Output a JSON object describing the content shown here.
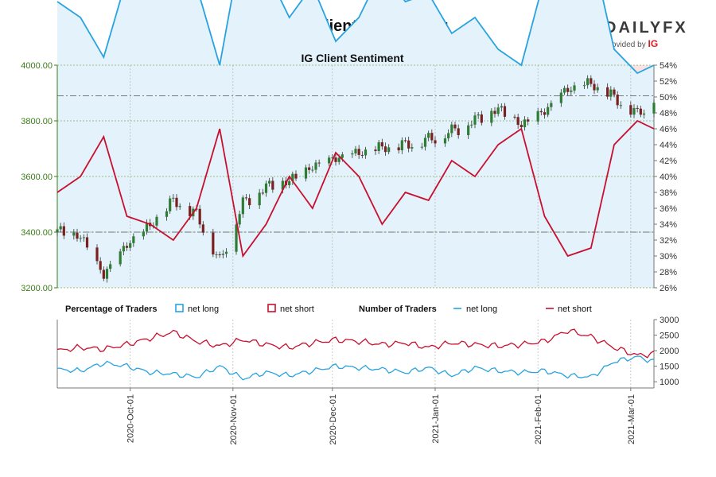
{
  "header": {
    "title": "US 500 Client Positioning",
    "logo_word": "DAILYFX",
    "logo_sub": "provided by",
    "logo_brand": "IG"
  },
  "colors": {
    "candle_up": "#2e7d32",
    "candle_down": "#7a2020",
    "net_long": "#29a3e0",
    "net_short": "#c8102e",
    "short_zone_bg": "#fbe3e4",
    "long_zone_bg": "#e3f2fb",
    "axis_green": "#3a7d1a"
  },
  "legend": {
    "pct_title": "Percentage of Traders",
    "pct_long": "net long",
    "pct_short": "net short",
    "num_title": "Number of Traders",
    "num_long": "net long",
    "num_short": "net short"
  },
  "chart_data": [
    {
      "type": "candlestick",
      "title": "IG Client Sentiment",
      "ylim": [
        3200,
        4000
      ],
      "yticks": [
        "3200.00",
        "3400.00",
        "3600.00",
        "3800.00",
        "4000.00"
      ],
      "right_ylim": [
        26,
        54
      ],
      "right_yticks": [
        "26%",
        "28%",
        "30%",
        "32%",
        "34%",
        "36%",
        "38%",
        "40%",
        "42%",
        "44%",
        "46%",
        "48%",
        "50%",
        "52%",
        "54%"
      ],
      "x_range": [
        "2020-09-09",
        "2021-03-08"
      ],
      "xticks": [
        {
          "date": "2020-10-01",
          "label": "2020-Oct-01"
        },
        {
          "date": "2020-11-01",
          "label": "2020-Nov-01"
        },
        {
          "date": "2020-12-01",
          "label": "2020-Dec-01"
        },
        {
          "date": "2021-01-01",
          "label": "2021-Jan-01"
        },
        {
          "date": "2021-02-01",
          "label": "2021-Feb-01"
        },
        {
          "date": "2021-03-01",
          "label": "2021-Mar-01"
        }
      ],
      "reference_lines": [
        3890,
        3400
      ],
      "closes": [
        {
          "date": "2020-09-09",
          "value": 3400
        },
        {
          "date": "2020-09-16",
          "value": 3380
        },
        {
          "date": "2020-09-23",
          "value": 3240
        },
        {
          "date": "2020-09-30",
          "value": 3350
        },
        {
          "date": "2020-10-07",
          "value": 3420
        },
        {
          "date": "2020-10-14",
          "value": 3510
        },
        {
          "date": "2020-10-21",
          "value": 3460
        },
        {
          "date": "2020-10-28",
          "value": 3290
        },
        {
          "date": "2020-11-04",
          "value": 3500
        },
        {
          "date": "2020-11-11",
          "value": 3560
        },
        {
          "date": "2020-11-18",
          "value": 3580
        },
        {
          "date": "2020-11-25",
          "value": 3630
        },
        {
          "date": "2020-12-02",
          "value": 3660
        },
        {
          "date": "2020-12-09",
          "value": 3680
        },
        {
          "date": "2020-12-16",
          "value": 3700
        },
        {
          "date": "2020-12-23",
          "value": 3710
        },
        {
          "date": "2020-12-30",
          "value": 3730
        },
        {
          "date": "2021-01-06",
          "value": 3760
        },
        {
          "date": "2021-01-13",
          "value": 3800
        },
        {
          "date": "2021-01-20",
          "value": 3840
        },
        {
          "date": "2021-01-27",
          "value": 3780
        },
        {
          "date": "2021-02-03",
          "value": 3830
        },
        {
          "date": "2021-02-10",
          "value": 3910
        },
        {
          "date": "2021-02-17",
          "value": 3930
        },
        {
          "date": "2021-02-24",
          "value": 3880
        },
        {
          "date": "2021-03-03",
          "value": 3820
        },
        {
          "date": "2021-03-08",
          "value": 3880
        }
      ],
      "series": [
        {
          "name": "net long",
          "values": [
            {
              "date": "2020-09-09",
              "value": 62
            },
            {
              "date": "2020-09-16",
              "value": 60
            },
            {
              "date": "2020-09-23",
              "value": 55
            },
            {
              "date": "2020-09-30",
              "value": 65
            },
            {
              "date": "2020-10-07",
              "value": 66
            },
            {
              "date": "2020-10-14",
              "value": 68
            },
            {
              "date": "2020-10-21",
              "value": 64
            },
            {
              "date": "2020-10-28",
              "value": 54
            },
            {
              "date": "2020-11-04",
              "value": 70
            },
            {
              "date": "2020-11-11",
              "value": 66
            },
            {
              "date": "2020-11-18",
              "value": 60
            },
            {
              "date": "2020-11-25",
              "value": 64
            },
            {
              "date": "2020-12-02",
              "value": 57
            },
            {
              "date": "2020-12-09",
              "value": 60
            },
            {
              "date": "2020-12-16",
              "value": 66
            },
            {
              "date": "2020-12-23",
              "value": 62
            },
            {
              "date": "2020-12-30",
              "value": 63
            },
            {
              "date": "2021-01-06",
              "value": 58
            },
            {
              "date": "2021-01-13",
              "value": 60
            },
            {
              "date": "2021-01-20",
              "value": 56
            },
            {
              "date": "2021-01-27",
              "value": 54
            },
            {
              "date": "2021-02-03",
              "value": 65
            },
            {
              "date": "2021-02-10",
              "value": 70
            },
            {
              "date": "2021-02-17",
              "value": 69
            },
            {
              "date": "2021-02-24",
              "value": 56
            },
            {
              "date": "2021-03-03",
              "value": 53
            },
            {
              "date": "2021-03-08",
              "value": 54
            }
          ]
        },
        {
          "name": "net short",
          "values": [
            {
              "date": "2020-09-09",
              "value": 38
            },
            {
              "date": "2020-09-16",
              "value": 40
            },
            {
              "date": "2020-09-23",
              "value": 45
            },
            {
              "date": "2020-09-30",
              "value": 35
            },
            {
              "date": "2020-10-07",
              "value": 34
            },
            {
              "date": "2020-10-14",
              "value": 32
            },
            {
              "date": "2020-10-21",
              "value": 36
            },
            {
              "date": "2020-10-28",
              "value": 46
            },
            {
              "date": "2020-11-04",
              "value": 30
            },
            {
              "date": "2020-11-11",
              "value": 34
            },
            {
              "date": "2020-11-18",
              "value": 40
            },
            {
              "date": "2020-11-25",
              "value": 36
            },
            {
              "date": "2020-12-02",
              "value": 43
            },
            {
              "date": "2020-12-09",
              "value": 40
            },
            {
              "date": "2020-12-16",
              "value": 34
            },
            {
              "date": "2020-12-23",
              "value": 38
            },
            {
              "date": "2020-12-30",
              "value": 37
            },
            {
              "date": "2021-01-06",
              "value": 42
            },
            {
              "date": "2021-01-13",
              "value": 40
            },
            {
              "date": "2021-01-20",
              "value": 44
            },
            {
              "date": "2021-01-27",
              "value": 46
            },
            {
              "date": "2021-02-03",
              "value": 35
            },
            {
              "date": "2021-02-10",
              "value": 30
            },
            {
              "date": "2021-02-17",
              "value": 31
            },
            {
              "date": "2021-02-24",
              "value": 44
            },
            {
              "date": "2021-03-03",
              "value": 47
            },
            {
              "date": "2021-03-08",
              "value": 46
            }
          ]
        }
      ]
    },
    {
      "type": "line",
      "title": "Number of Traders",
      "ylim": [
        800,
        3000
      ],
      "yticks": [
        "1000",
        "1500",
        "2000",
        "2500",
        "3000"
      ],
      "series": [
        {
          "name": "net long",
          "values": [
            {
              "date": "2020-09-09",
              "value": 1400
            },
            {
              "date": "2020-09-16",
              "value": 1350
            },
            {
              "date": "2020-09-23",
              "value": 1600
            },
            {
              "date": "2020-09-30",
              "value": 1500
            },
            {
              "date": "2020-10-07",
              "value": 1300
            },
            {
              "date": "2020-10-14",
              "value": 1250
            },
            {
              "date": "2020-10-21",
              "value": 1150
            },
            {
              "date": "2020-10-28",
              "value": 1500
            },
            {
              "date": "2020-11-04",
              "value": 1100
            },
            {
              "date": "2020-11-11",
              "value": 1300
            },
            {
              "date": "2020-11-18",
              "value": 1200
            },
            {
              "date": "2020-11-25",
              "value": 1350
            },
            {
              "date": "2020-12-02",
              "value": 1500
            },
            {
              "date": "2020-12-09",
              "value": 1450
            },
            {
              "date": "2020-12-16",
              "value": 1400
            },
            {
              "date": "2020-12-23",
              "value": 1300
            },
            {
              "date": "2020-12-30",
              "value": 1450
            },
            {
              "date": "2021-01-06",
              "value": 1200
            },
            {
              "date": "2021-01-13",
              "value": 1450
            },
            {
              "date": "2021-01-20",
              "value": 1350
            },
            {
              "date": "2021-01-27",
              "value": 1300
            },
            {
              "date": "2021-02-03",
              "value": 1350
            },
            {
              "date": "2021-02-10",
              "value": 1200
            },
            {
              "date": "2021-02-17",
              "value": 1150
            },
            {
              "date": "2021-02-24",
              "value": 1650
            },
            {
              "date": "2021-03-03",
              "value": 1800
            },
            {
              "date": "2021-03-08",
              "value": 1650
            }
          ]
        },
        {
          "name": "net short",
          "values": [
            {
              "date": "2020-09-09",
              "value": 2000
            },
            {
              "date": "2020-09-16",
              "value": 2100
            },
            {
              "date": "2020-09-23",
              "value": 2050
            },
            {
              "date": "2020-09-30",
              "value": 2200
            },
            {
              "date": "2020-10-07",
              "value": 2400
            },
            {
              "date": "2020-10-14",
              "value": 2600
            },
            {
              "date": "2020-10-21",
              "value": 2300
            },
            {
              "date": "2020-10-28",
              "value": 2150
            },
            {
              "date": "2020-11-04",
              "value": 2350
            },
            {
              "date": "2020-11-11",
              "value": 2200
            },
            {
              "date": "2020-11-18",
              "value": 2100
            },
            {
              "date": "2020-11-25",
              "value": 2250
            },
            {
              "date": "2020-12-02",
              "value": 2350
            },
            {
              "date": "2020-12-09",
              "value": 2300
            },
            {
              "date": "2020-12-16",
              "value": 2200
            },
            {
              "date": "2020-12-23",
              "value": 2250
            },
            {
              "date": "2020-12-30",
              "value": 2100
            },
            {
              "date": "2021-01-06",
              "value": 2250
            },
            {
              "date": "2021-01-13",
              "value": 2200
            },
            {
              "date": "2021-01-20",
              "value": 2150
            },
            {
              "date": "2021-01-27",
              "value": 2200
            },
            {
              "date": "2021-02-03",
              "value": 2300
            },
            {
              "date": "2021-02-10",
              "value": 2650
            },
            {
              "date": "2021-02-17",
              "value": 2450
            },
            {
              "date": "2021-02-24",
              "value": 2100
            },
            {
              "date": "2021-03-03",
              "value": 1850
            },
            {
              "date": "2021-03-08",
              "value": 1900
            }
          ]
        }
      ]
    }
  ]
}
